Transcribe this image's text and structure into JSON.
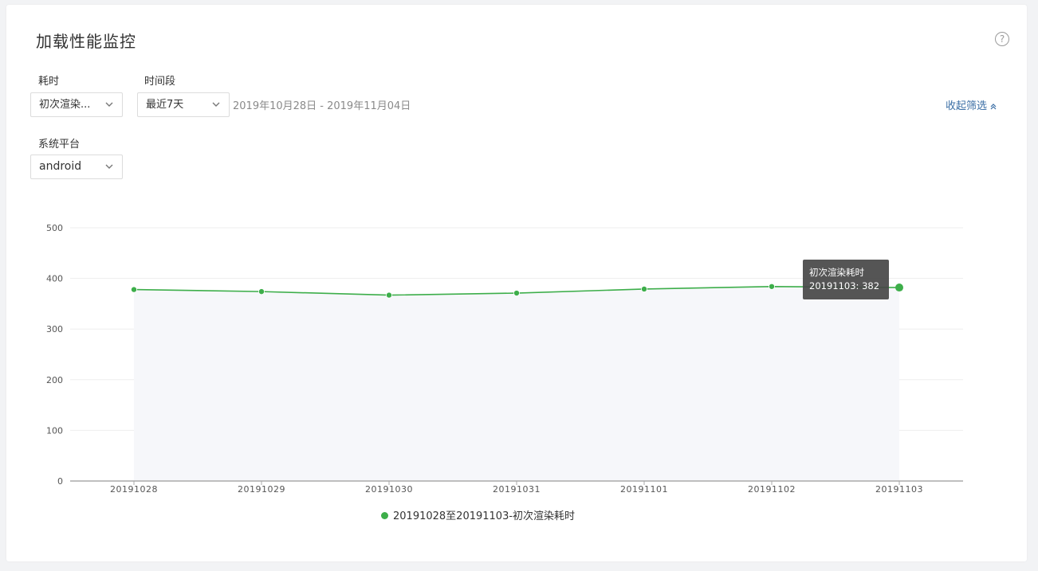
{
  "page": {
    "title": "加载性能监控",
    "help_icon": "question-circle-icon"
  },
  "filters": {
    "metric": {
      "label": "耗时",
      "value": "初次渲染..."
    },
    "period": {
      "label": "时间段",
      "value": "最近7天",
      "range": "2019年10月28日 - 2019年11月04日"
    },
    "platform": {
      "label": "系统平台",
      "value": "android"
    },
    "collapse_label": "收起筛选"
  },
  "tooltip": {
    "title": "初次渲染耗时",
    "line": "20191103: 382"
  },
  "colors": {
    "series": "#3dae4a",
    "link": "#3a6ea5"
  },
  "chart_data": {
    "type": "area",
    "categories": [
      "20191028",
      "20191029",
      "20191030",
      "20191031",
      "20191101",
      "20191102",
      "20191103"
    ],
    "series": [
      {
        "name": "20191028至20191103-初次渲染耗时",
        "values": [
          378,
          374,
          367,
          371,
          379,
          384,
          382
        ]
      }
    ],
    "y_ticks": [
      0,
      100,
      200,
      300,
      400,
      500
    ],
    "ylim": [
      0,
      500
    ],
    "grid": true,
    "legend": "bottom-center",
    "highlighted_index": 6
  }
}
